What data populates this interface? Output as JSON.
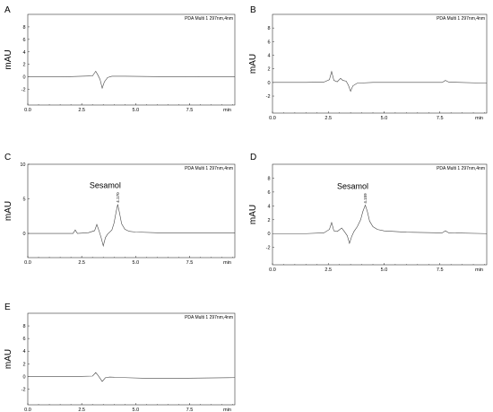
{
  "chart_data": [
    {
      "panel": "A",
      "type": "line",
      "detector": "PDA Multi 1 297nm,4nm",
      "xlabel": "min",
      "ylabel": "mAU",
      "xlim": [
        0,
        9.6
      ],
      "ylim": [
        -4.5,
        10
      ],
      "xticks": [
        "0.0",
        "2.5",
        "5.0",
        "7.5"
      ],
      "yticks": [
        "-2",
        "0",
        "2",
        "4",
        "6",
        "8"
      ],
      "annotation": "",
      "peak_label": "",
      "series": [
        {
          "x": [
            0,
            1.5,
            2.0,
            2.5,
            3.0,
            3.15,
            3.25,
            3.35,
            3.45,
            3.55,
            3.7,
            3.9,
            4.5,
            6.0,
            8.0,
            9.6
          ],
          "y": [
            0,
            0,
            0.05,
            0.1,
            0.15,
            0.9,
            0.3,
            -0.4,
            -1.8,
            -0.8,
            -0.1,
            0.1,
            0.1,
            0.05,
            0,
            0
          ]
        }
      ]
    },
    {
      "panel": "B",
      "type": "line",
      "detector": "PDA Multi 1 297nm,4nm",
      "xlabel": "min",
      "ylabel": "mAU",
      "xlim": [
        0,
        9.6
      ],
      "ylim": [
        -4.5,
        10
      ],
      "xticks": [
        "0.0",
        "2.5",
        "5.0",
        "7.5"
      ],
      "yticks": [
        "-2",
        "0",
        "2",
        "4",
        "6",
        "8"
      ],
      "annotation": "",
      "peak_label": "",
      "series": [
        {
          "x": [
            0,
            1.5,
            2.3,
            2.55,
            2.65,
            2.75,
            2.9,
            3.05,
            3.15,
            3.3,
            3.4,
            3.5,
            3.6,
            3.8,
            4.5,
            6.0,
            7.6,
            7.75,
            7.9,
            9.6
          ],
          "y": [
            0,
            0,
            0.05,
            0.4,
            1.6,
            0.3,
            0.1,
            0.6,
            0.3,
            0.2,
            -0.4,
            -1.3,
            -0.5,
            -0.1,
            0,
            0,
            0,
            0.3,
            0.05,
            -0.1
          ]
        }
      ]
    },
    {
      "panel": "C",
      "type": "line",
      "detector": "PDA Multi 1 297nm,4nm",
      "xlabel": "min",
      "ylabel": "mAU",
      "xlim": [
        0,
        9.6
      ],
      "ylim": [
        -3.5,
        10
      ],
      "xticks": [
        "0.0",
        "2.5",
        "5.0",
        "7.5"
      ],
      "yticks": [
        "0",
        "5",
        "10"
      ],
      "annotation": "Sesamol",
      "peak_label": "4.170",
      "peak_rt": 4.17,
      "series": [
        {
          "x": [
            0,
            1.5,
            2.1,
            2.2,
            2.3,
            2.8,
            3.1,
            3.2,
            3.3,
            3.4,
            3.5,
            3.6,
            3.7,
            3.9,
            4.0,
            4.1,
            4.17,
            4.25,
            4.35,
            4.5,
            4.7,
            5.0,
            6.0,
            8.0,
            9.6
          ],
          "y": [
            0,
            0,
            0,
            0.5,
            0,
            0.1,
            0.4,
            1.3,
            0.4,
            -0.6,
            -1.8,
            -0.6,
            -0.1,
            0.5,
            1.5,
            3.2,
            4.2,
            3.0,
            1.4,
            0.6,
            0.3,
            0.2,
            0.1,
            0.1,
            0.1
          ]
        }
      ]
    },
    {
      "panel": "D",
      "type": "line",
      "detector": "PDA Multi 1 297nm,4nm",
      "xlabel": "min",
      "ylabel": "mAU",
      "xlim": [
        0,
        9.6
      ],
      "ylim": [
        -4.5,
        10
      ],
      "xticks": [
        "0.0",
        "2.5",
        "5.0",
        "7.5"
      ],
      "yticks": [
        "-2",
        "0",
        "2",
        "4",
        "6",
        "8"
      ],
      "annotation": "Sesamol",
      "peak_label": "4.159",
      "peak_rt": 4.159,
      "series": [
        {
          "x": [
            0,
            1.5,
            2.3,
            2.55,
            2.65,
            2.75,
            2.9,
            3.1,
            3.2,
            3.35,
            3.45,
            3.55,
            3.65,
            3.8,
            3.95,
            4.05,
            4.159,
            4.25,
            4.35,
            4.5,
            4.7,
            5.0,
            6.0,
            7.6,
            7.75,
            7.9,
            9.6
          ],
          "y": [
            0,
            0,
            0.1,
            0.6,
            1.6,
            0.4,
            0.3,
            0.8,
            0.4,
            -0.3,
            -1.4,
            -0.4,
            0.3,
            1.0,
            2.0,
            3.2,
            4.1,
            3.2,
            1.8,
            1.0,
            0.6,
            0.4,
            0.2,
            0.1,
            0.4,
            0.1,
            0
          ]
        }
      ]
    },
    {
      "panel": "E",
      "type": "line",
      "detector": "PDA Multi 1 297nm,4nm",
      "xlabel": "min",
      "ylabel": "mAU",
      "xlim": [
        0,
        9.6
      ],
      "ylim": [
        -4.5,
        10
      ],
      "xticks": [
        "0.0",
        "2.5",
        "5.0",
        "7.5"
      ],
      "yticks": [
        "-2",
        "0",
        "2",
        "4",
        "6",
        "8"
      ],
      "annotation": "",
      "peak_label": "",
      "series": [
        {
          "x": [
            0,
            1.5,
            2.5,
            3.0,
            3.15,
            3.25,
            3.35,
            3.45,
            3.6,
            3.8,
            4.5,
            5.5,
            7.0,
            9.6
          ],
          "y": [
            0,
            0,
            0,
            0.05,
            0.6,
            0.2,
            -0.3,
            -0.8,
            -0.2,
            -0.1,
            -0.2,
            -0.3,
            -0.3,
            -0.2
          ]
        }
      ]
    }
  ]
}
